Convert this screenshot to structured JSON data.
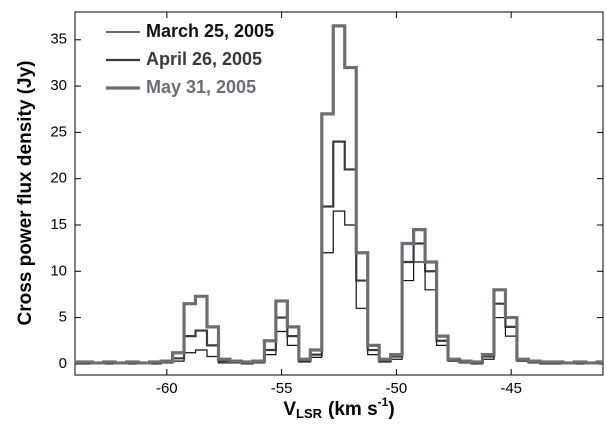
{
  "chart_data": {
    "type": "step-line",
    "y_label": "Cross power flux density (Jy)",
    "x_label": {
      "main": "V",
      "sub": "LSR",
      "unit": "(km s",
      "sup": "-1",
      "end": ")"
    },
    "x": [
      -64,
      -63.5,
      -63,
      -62.5,
      -62,
      -61.5,
      -61,
      -60.5,
      -60,
      -59.5,
      -59,
      -58.5,
      -58,
      -57.5,
      -57,
      -56.5,
      -56,
      -55.5,
      -55,
      -54.5,
      -54,
      -53.5,
      -53,
      -52.5,
      -52,
      -51.5,
      -51,
      -50.5,
      -50,
      -49.5,
      -49,
      -48.5,
      -48,
      -47.5,
      -47,
      -46.5,
      -46,
      -45.5,
      -45,
      -44.5,
      -44,
      -43.5,
      -43,
      -42.5,
      -42,
      -41.5,
      -41
    ],
    "series": [
      {
        "name": "March 25, 2005",
        "color": "#111111",
        "width": 1.2,
        "values": [
          0,
          0,
          0,
          0,
          0,
          0,
          0,
          0,
          0.1,
          0.3,
          1.2,
          1.5,
          0.8,
          0.1,
          0.1,
          0,
          0.1,
          1,
          3.5,
          2,
          0.2,
          0.7,
          12,
          16.5,
          15,
          6,
          1,
          0.2,
          0.5,
          9,
          11,
          8,
          2,
          0.3,
          0.1,
          0,
          0.5,
          5,
          3,
          0.3,
          0.1,
          0,
          0,
          0,
          0,
          0,
          0
        ]
      },
      {
        "name": "April 26, 2005",
        "color": "#3a3a3a",
        "width": 2.2,
        "values": [
          0.1,
          0.1,
          0.1,
          0.1,
          0.1,
          0.1,
          0.1,
          0.1,
          0.2,
          0.6,
          3,
          3.6,
          2,
          0.3,
          0.2,
          0.1,
          0.2,
          1.5,
          5,
          3,
          0.3,
          1,
          17,
          24,
          21,
          9,
          1.5,
          0.3,
          0.8,
          11,
          13,
          10,
          2.5,
          0.4,
          0.2,
          0.1,
          0.8,
          6.5,
          4,
          0.4,
          0.2,
          0.1,
          0.1,
          0.1,
          0.1,
          0.1,
          0.1
        ]
      },
      {
        "name": "May 31, 2005",
        "color": "#6b6f73",
        "width": 3.2,
        "values": [
          0.2,
          0.2,
          0.1,
          0.2,
          0.1,
          0.2,
          0.1,
          0.2,
          0.3,
          1.2,
          6.5,
          7.3,
          4,
          0.5,
          0.3,
          0.2,
          0.3,
          2.5,
          6.8,
          4,
          0.5,
          1.5,
          27,
          36.5,
          32,
          12,
          2,
          0.5,
          1,
          13,
          14.5,
          11,
          3,
          0.5,
          0.3,
          0.2,
          1,
          8,
          5,
          0.5,
          0.3,
          0.2,
          0.2,
          0.1,
          0.2,
          0.1,
          0.2
        ]
      }
    ],
    "xlim": [
      -64,
      -41
    ],
    "ylim": [
      -1.2,
      38
    ],
    "xticks": [
      -60,
      -55,
      -50,
      -45
    ],
    "yticks": [
      0,
      5,
      10,
      15,
      20,
      25,
      30,
      35
    ],
    "grid": false,
    "legend": "upper left"
  }
}
